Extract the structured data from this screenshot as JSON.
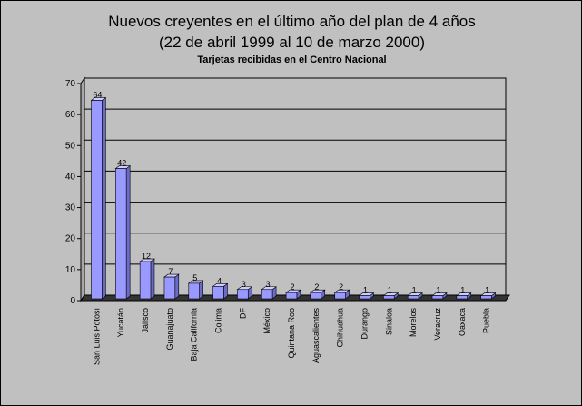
{
  "chart_data": {
    "type": "bar",
    "title": "Nuevos creyentes en el último año del plan de 4 años",
    "title_line2": "(22 de abril 1999 al 10 de marzo 2000)",
    "subtitle": "Tarjetas recibidas en el Centro Nacional",
    "xlabel": "",
    "ylabel": "",
    "ylim": [
      0,
      70
    ],
    "yticks": [
      0,
      10,
      20,
      30,
      40,
      50,
      60,
      70
    ],
    "grid": true,
    "legend": "none",
    "bar_color": "#9999ff",
    "wall_color": "#c0c0c0",
    "floor_color": "#333333",
    "categories": [
      "San Luis Potosí",
      "Yucatán",
      "Jalisco",
      "Guanajuato",
      "Baja California",
      "Colima",
      "DF",
      "México",
      "Quintana Roo",
      "Aguascalientes",
      "Chihuahua",
      "Durango",
      "Sinaloa",
      "Morelos",
      "Veracruz",
      "Oaxaca",
      "Puebla"
    ],
    "values": [
      64,
      42,
      12,
      7,
      5,
      4,
      3,
      3,
      2,
      2,
      2,
      1,
      1,
      1,
      1,
      1,
      1
    ]
  }
}
